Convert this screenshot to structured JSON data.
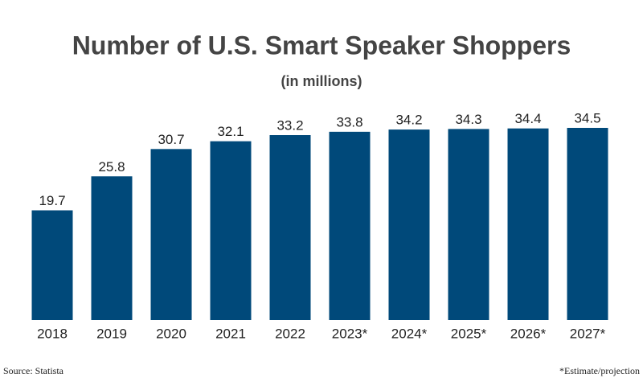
{
  "chart_data": {
    "type": "bar",
    "title": "Number of U.S. Smart Speaker Shoppers",
    "subtitle": "(in millions)",
    "categories": [
      "2018",
      "2019",
      "2020",
      "2021",
      "2022",
      "2023*",
      "2024*",
      "2025*",
      "2026*",
      "2027*"
    ],
    "values": [
      19.7,
      25.8,
      30.7,
      32.1,
      33.2,
      33.8,
      34.2,
      34.3,
      34.4,
      34.5
    ],
    "color": "#00497a",
    "source": "Source: Statista",
    "note": "*Estimate/projection"
  }
}
